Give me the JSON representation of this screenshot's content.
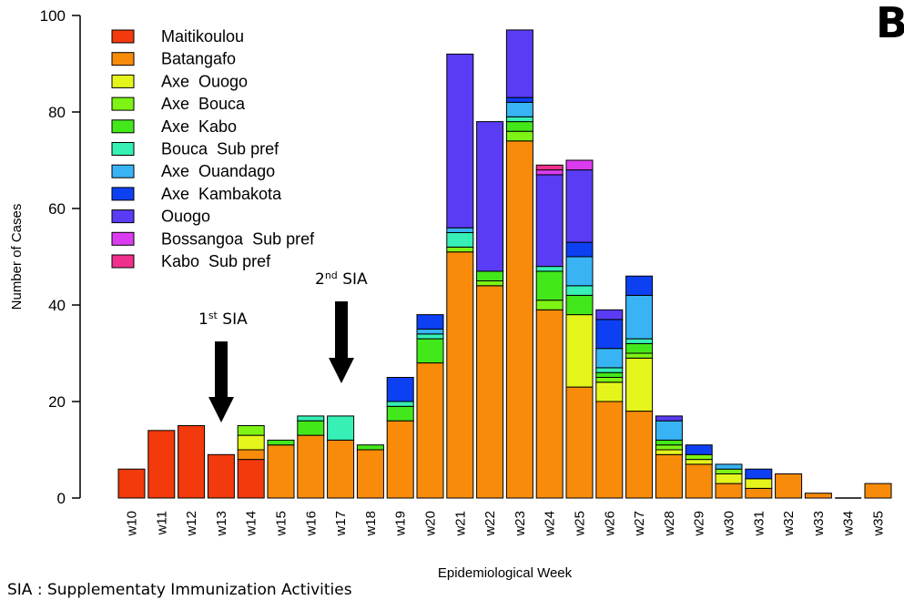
{
  "panel_letter": "B",
  "footnote": "SIA : Supplementaty Immunization Activities",
  "annotations": [
    {
      "num": "1",
      "sup": "st",
      "text": " SIA",
      "week": "w13"
    },
    {
      "num": "2",
      "sup": "nd",
      "text": " SIA",
      "week": "w17"
    }
  ],
  "colors": {
    "Maitikoulou": "#f23a0c",
    "Batangafo": "#f98b0a",
    "Axe  Ouogo": "#e5f51c",
    "Axe  Bouca": "#7ef414",
    "Axe  Kabo": "#43e81a",
    "Bouca  Sub pref": "#36f0b5",
    "Axe  Ouandago": "#38b4f5",
    "Axe  Kambakota": "#0c40f2",
    "Ouogo": "#5a3cf5",
    "Bossangoa  Sub pref": "#dc3cf0",
    "Kabo  Sub pref": "#f02f8c"
  },
  "chart_data": {
    "type": "bar",
    "stacked": true,
    "xlabel": "Epidemiological Week",
    "ylabel": "Number of Cases",
    "ylim": [
      0,
      100
    ],
    "yticks": [
      0,
      20,
      40,
      60,
      80,
      100
    ],
    "legend_position": "top-left",
    "categories": [
      "w10",
      "w11",
      "w12",
      "w13",
      "w14",
      "w15",
      "w16",
      "w17",
      "w18",
      "w19",
      "w20",
      "w21",
      "w22",
      "w23",
      "w24",
      "w25",
      "w26",
      "w27",
      "w28",
      "w29",
      "w30",
      "w31",
      "w32",
      "w33",
      "w34",
      "w35"
    ],
    "series": [
      {
        "name": "Maitikoulou",
        "values": [
          6,
          14,
          15,
          9,
          8,
          0,
          0,
          0,
          0,
          0,
          0,
          0,
          0,
          0,
          0,
          0,
          0,
          0,
          0,
          0,
          0,
          0,
          0,
          0,
          0,
          0
        ]
      },
      {
        "name": "Batangafo",
        "values": [
          0,
          0,
          0,
          0,
          2,
          11,
          13,
          12,
          10,
          16,
          28,
          51,
          44,
          74,
          39,
          23,
          20,
          18,
          9,
          7,
          3,
          2,
          5,
          1,
          0,
          3
        ]
      },
      {
        "name": "Axe  Ouogo",
        "values": [
          0,
          0,
          0,
          0,
          3,
          0,
          0,
          0,
          0,
          0,
          0,
          0,
          0,
          0,
          0,
          15,
          4,
          11,
          1,
          1,
          2,
          2,
          0,
          0,
          0,
          0
        ]
      },
      {
        "name": "Axe  Bouca",
        "values": [
          0,
          0,
          0,
          0,
          2,
          0,
          0,
          0,
          0,
          0,
          0,
          1,
          1,
          2,
          2,
          0,
          1,
          1,
          1,
          1,
          1,
          0,
          0,
          0,
          0,
          0
        ]
      },
      {
        "name": "Axe  Kabo",
        "values": [
          0,
          0,
          0,
          0,
          0,
          1,
          3,
          0,
          1,
          3,
          5,
          0,
          2,
          2,
          6,
          4,
          1,
          2,
          1,
          0,
          0,
          0,
          0,
          0,
          0,
          0
        ]
      },
      {
        "name": "Bouca  Sub pref",
        "values": [
          0,
          0,
          0,
          0,
          0,
          0,
          1,
          5,
          0,
          1,
          1,
          3,
          0,
          1,
          1,
          2,
          1,
          1,
          0,
          0,
          0,
          0,
          0,
          0,
          0,
          0
        ]
      },
      {
        "name": "Axe  Ouandago",
        "values": [
          0,
          0,
          0,
          0,
          0,
          0,
          0,
          0,
          0,
          0,
          1,
          1,
          0,
          3,
          0,
          6,
          4,
          9,
          4,
          0,
          1,
          0,
          0,
          0,
          0,
          0
        ]
      },
      {
        "name": "Axe  Kambakota",
        "values": [
          0,
          0,
          0,
          0,
          0,
          0,
          0,
          0,
          0,
          5,
          3,
          0,
          0,
          1,
          0,
          3,
          6,
          4,
          0,
          2,
          0,
          2,
          0,
          0,
          0,
          0
        ]
      },
      {
        "name": "Ouogo",
        "values": [
          0,
          0,
          0,
          0,
          0,
          0,
          0,
          0,
          0,
          0,
          0,
          36,
          31,
          14,
          19,
          15,
          2,
          0,
          1,
          0,
          0,
          0,
          0,
          0,
          0,
          0
        ]
      },
      {
        "name": "Bossangoa  Sub pref",
        "values": [
          0,
          0,
          0,
          0,
          0,
          0,
          0,
          0,
          0,
          0,
          0,
          0,
          0,
          0,
          1,
          2,
          0,
          0,
          0,
          0,
          0,
          0,
          0,
          0,
          0,
          0
        ]
      },
      {
        "name": "Kabo  Sub pref",
        "values": [
          0,
          0,
          0,
          0,
          0,
          0,
          0,
          0,
          0,
          0,
          0,
          0,
          0,
          0,
          1,
          0,
          0,
          0,
          0,
          0,
          0,
          0,
          0,
          0,
          0,
          0
        ]
      }
    ]
  }
}
